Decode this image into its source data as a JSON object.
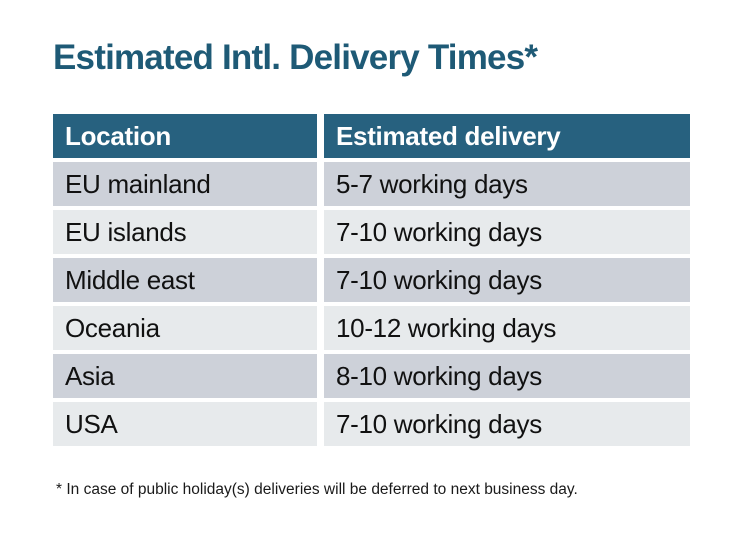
{
  "colors": {
    "background": "#FFFFFF",
    "title_text": "#1E5A76",
    "header_bg": "#27617F",
    "header_text": "#FFFFFF",
    "row_dark": "#CDD1D9",
    "row_light": "#E7EAEC",
    "body_text": "#111111"
  },
  "chart_data": {
    "type": "table",
    "title": "Estimated Intl. Delivery Times*",
    "columns": [
      "Location",
      "Estimated delivery"
    ],
    "rows": [
      {
        "location": "EU mainland",
        "delivery": "5-7 working days"
      },
      {
        "location": "EU islands",
        "delivery": "7-10 working days"
      },
      {
        "location": "Middle east",
        "delivery": "7-10 working days"
      },
      {
        "location": "Oceania",
        "delivery": "10-12 working days"
      },
      {
        "location": "Asia",
        "delivery": "8-10 working days"
      },
      {
        "location": "USA",
        "delivery": "7-10 working days"
      }
    ],
    "footnote": "* In case of public holiday(s) deliveries will be deferred to next business day.",
    "layout": {
      "legend": "none",
      "grid": "off",
      "row_striping": "alternating starting dark"
    }
  }
}
